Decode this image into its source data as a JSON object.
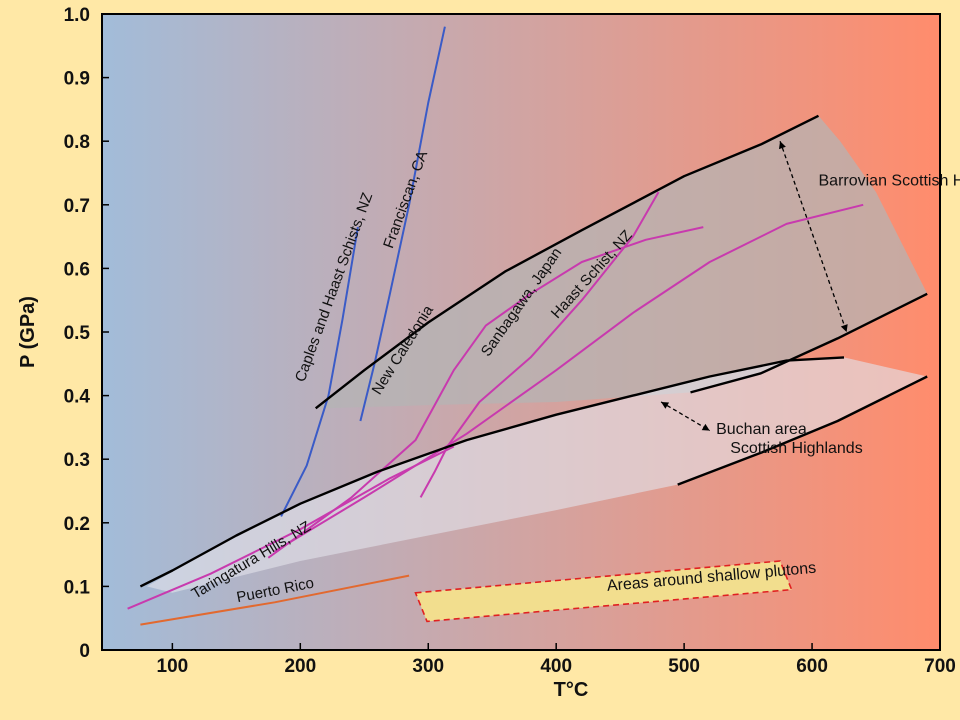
{
  "chart_data": {
    "type": "line",
    "title": "",
    "xlabel": "T°C",
    "ylabel": "P (GPa)",
    "xlim": [
      45,
      700
    ],
    "ylim": [
      0,
      1.0
    ],
    "x_ticks": [
      "100",
      "200",
      "300",
      "400",
      "500",
      "600",
      "700"
    ],
    "y_ticks": [
      "0",
      "0.1",
      "0.2",
      "0.3",
      "0.4",
      "0.5",
      "0.6",
      "0.7",
      "0.8",
      "0.9",
      "1.0"
    ],
    "grid": false,
    "background_gradient": [
      "#a2bcd9",
      "#ff8c6c"
    ],
    "colors": {
      "boundary": "#000000",
      "blue_gradients": "#3a5bc7",
      "magenta_gradients": "#c83aae",
      "puerto_rico": "#e2692f",
      "field_fill": "#b4b4b4",
      "pluton_band": "#f2de8e",
      "pluton_border": "#e02020"
    },
    "series": [
      {
        "name": "Franciscan, CA",
        "color": "#3a5bc7",
        "values": [
          [
            247,
            0.36
          ],
          [
            258,
            0.45
          ],
          [
            270,
            0.56
          ],
          [
            285,
            0.7
          ],
          [
            300,
            0.86
          ],
          [
            313,
            0.98
          ]
        ]
      },
      {
        "name": "Caples and Haast Schists, NZ",
        "color": "#3a5bc7",
        "values": [
          [
            185,
            0.21
          ],
          [
            205,
            0.29
          ],
          [
            222,
            0.4
          ],
          [
            233,
            0.52
          ],
          [
            245,
            0.665
          ]
        ]
      },
      {
        "name": "New Caledonia",
        "color": "#c83aae",
        "values": [
          [
            175,
            0.145
          ],
          [
            240,
            0.24
          ],
          [
            290,
            0.33
          ],
          [
            320,
            0.44
          ],
          [
            345,
            0.51
          ],
          [
            380,
            0.56
          ],
          [
            420,
            0.61
          ],
          [
            470,
            0.645
          ],
          [
            515,
            0.665
          ]
        ]
      },
      {
        "name": "Sanbagawa, Japan",
        "color": "#c83aae",
        "values": [
          [
            294,
            0.24
          ],
          [
            305,
            0.28
          ],
          [
            315,
            0.32
          ],
          [
            340,
            0.39
          ],
          [
            380,
            0.46
          ],
          [
            420,
            0.55
          ],
          [
            460,
            0.65
          ],
          [
            480,
            0.72
          ]
        ]
      },
      {
        "name": "Haast Schist, NZ",
        "color": "#c83aae",
        "values": [
          [
            180,
            0.155
          ],
          [
            250,
            0.24
          ],
          [
            330,
            0.34
          ],
          [
            400,
            0.44
          ],
          [
            460,
            0.53
          ],
          [
            520,
            0.61
          ],
          [
            580,
            0.67
          ],
          [
            640,
            0.7
          ]
        ]
      },
      {
        "name": "Taringatura Hills, NZ",
        "color": "#c83aae",
        "values": [
          [
            65,
            0.065
          ],
          [
            130,
            0.12
          ],
          [
            200,
            0.19
          ],
          [
            270,
            0.27
          ],
          [
            320,
            0.32
          ]
        ]
      },
      {
        "name": "Puerto Rico",
        "color": "#e2692f",
        "values": [
          [
            75,
            0.04
          ],
          [
            180,
            0.075
          ],
          [
            285,
            0.117
          ]
        ]
      }
    ],
    "boundaries": [
      {
        "values": [
          [
            212,
            0.38
          ],
          [
            250,
            0.44
          ],
          [
            300,
            0.515
          ],
          [
            360,
            0.595
          ],
          [
            420,
            0.66
          ],
          [
            500,
            0.745
          ],
          [
            560,
            0.795
          ],
          [
            605,
            0.84
          ]
        ]
      },
      {
        "values": [
          [
            75,
            0.1
          ],
          [
            100,
            0.125
          ],
          [
            150,
            0.18
          ],
          [
            200,
            0.23
          ],
          [
            260,
            0.28
          ],
          [
            330,
            0.33
          ],
          [
            400,
            0.37
          ],
          [
            460,
            0.4
          ],
          [
            520,
            0.43
          ],
          [
            580,
            0.455
          ],
          [
            625,
            0.46
          ]
        ]
      },
      {
        "values": [
          [
            505,
            0.405
          ],
          [
            560,
            0.435
          ],
          [
            620,
            0.49
          ],
          [
            690,
            0.56
          ]
        ]
      },
      {
        "values": [
          [
            495,
            0.26
          ],
          [
            560,
            0.31
          ],
          [
            620,
            0.36
          ],
          [
            690,
            0.43
          ]
        ]
      }
    ],
    "regions": [
      {
        "name": "Barrovian Scottish Highlands",
        "values": [
          [
            212,
            0.38
          ],
          [
            250,
            0.44
          ],
          [
            300,
            0.515
          ],
          [
            360,
            0.595
          ],
          [
            420,
            0.66
          ],
          [
            500,
            0.745
          ],
          [
            560,
            0.795
          ],
          [
            605,
            0.84
          ],
          [
            622,
            0.8
          ],
          [
            650,
            0.72
          ],
          [
            690,
            0.56
          ],
          [
            620,
            0.49
          ],
          [
            560,
            0.435
          ],
          [
            505,
            0.405
          ],
          [
            400,
            0.39
          ],
          [
            300,
            0.385
          ],
          [
            220,
            0.38
          ]
        ]
      },
      {
        "name": "Buchan area Scottish Highlands",
        "values": [
          [
            80,
            0.1
          ],
          [
            150,
            0.18
          ],
          [
            200,
            0.23
          ],
          [
            260,
            0.28
          ],
          [
            330,
            0.33
          ],
          [
            400,
            0.37
          ],
          [
            460,
            0.4
          ],
          [
            520,
            0.43
          ],
          [
            580,
            0.455
          ],
          [
            625,
            0.46
          ],
          [
            690,
            0.43
          ],
          [
            620,
            0.36
          ],
          [
            560,
            0.31
          ],
          [
            495,
            0.26
          ],
          [
            400,
            0.22
          ],
          [
            300,
            0.18
          ],
          [
            200,
            0.14
          ],
          [
            100,
            0.09
          ]
        ]
      }
    ],
    "arrows": [
      {
        "values": [
          [
            575,
            0.8
          ],
          [
            627,
            0.5
          ]
        ]
      },
      {
        "values": [
          [
            482,
            0.39
          ],
          [
            520,
            0.345
          ]
        ]
      }
    ],
    "pluton_band": {
      "name": "Areas around shallow plutons",
      "values": [
        [
          290,
          0.09
        ],
        [
          575,
          0.14
        ],
        [
          584,
          0.095
        ],
        [
          299,
          0.045
        ]
      ]
    },
    "labels": [
      {
        "text": "Franciscan, CA",
        "at": [
          272,
          0.63
        ],
        "rotate": -70
      },
      {
        "text": "Caples and Haast Schists, NZ",
        "at": [
          203,
          0.42
        ],
        "rotate": -70
      },
      {
        "text": "New Caledonia",
        "at": [
          262,
          0.4
        ],
        "rotate": -58
      },
      {
        "text": "Sanbagawa, Japan",
        "at": [
          347,
          0.46
        ],
        "rotate": -55
      },
      {
        "text": "Haast Schist, NZ",
        "at": [
          401,
          0.52
        ],
        "rotate": -48
      },
      {
        "text": "Taringatura Hills, NZ",
        "at": [
          118,
          0.08
        ],
        "rotate": -31
      },
      {
        "text": "Puerto Rico",
        "at": [
          151,
          0.075
        ],
        "rotate": -11
      },
      {
        "text": "Barrovian Scottish Highlands",
        "at": [
          605,
          0.73
        ],
        "rotate": 0
      },
      {
        "text": "Buchan area",
        "at": [
          525,
          0.34
        ],
        "rotate": 0
      },
      {
        "text": "Scottish Highlands",
        "at": [
          536,
          0.31
        ],
        "rotate": 0
      },
      {
        "text": "Areas around shallow plutons",
        "at": [
          440,
          0.093
        ],
        "rotate": -5
      }
    ]
  }
}
